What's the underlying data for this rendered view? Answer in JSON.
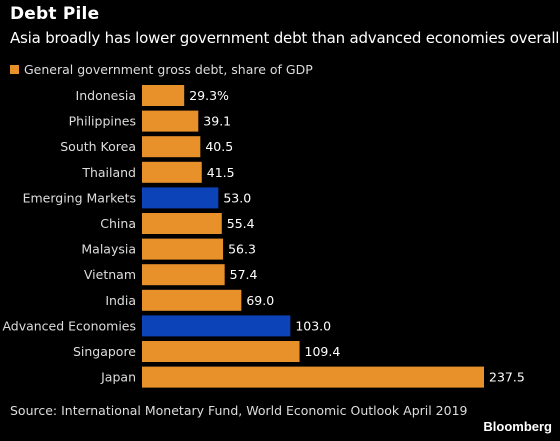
{
  "title": "Debt Pile",
  "subtitle": "Asia broadly has lower government debt than advanced economies overall",
  "source": "Source: International Monetary Fund, World Economic Outlook April 2019",
  "brand": "Bloomberg",
  "colors": {
    "background": "#000000",
    "default_bar": "#e8912b",
    "highlight_bar": "#0d43b8",
    "text": "#ffffff"
  },
  "chart_data": {
    "type": "bar",
    "orientation": "horizontal",
    "title": "Debt Pile",
    "subtitle": "Asia broadly has lower government debt than advanced economies overall",
    "series": [
      {
        "name": "General government gross debt, share of GDP",
        "values": [
          29.3,
          39.1,
          40.5,
          41.5,
          53.0,
          55.4,
          56.3,
          57.4,
          69.0,
          103.0,
          109.4,
          237.5
        ]
      }
    ],
    "categories": [
      "Indonesia",
      "Philippines",
      "South Korea",
      "Thailand",
      "Emerging Markets",
      "China",
      "Malaysia",
      "Vietnam",
      "India",
      "Advanced Economies",
      "Singapore",
      "Japan"
    ],
    "value_labels": [
      "29.3%",
      "39.1",
      "40.5",
      "41.5",
      "53.0",
      "55.4",
      "56.3",
      "57.4",
      "69.0",
      "103.0",
      "109.4",
      "237.5"
    ],
    "highlighted": [
      "Emerging Markets",
      "Advanced Economies"
    ],
    "xlim": [
      0,
      237.5
    ],
    "xlabel": "",
    "ylabel": "",
    "grid": false,
    "legend_position": "top-left"
  }
}
